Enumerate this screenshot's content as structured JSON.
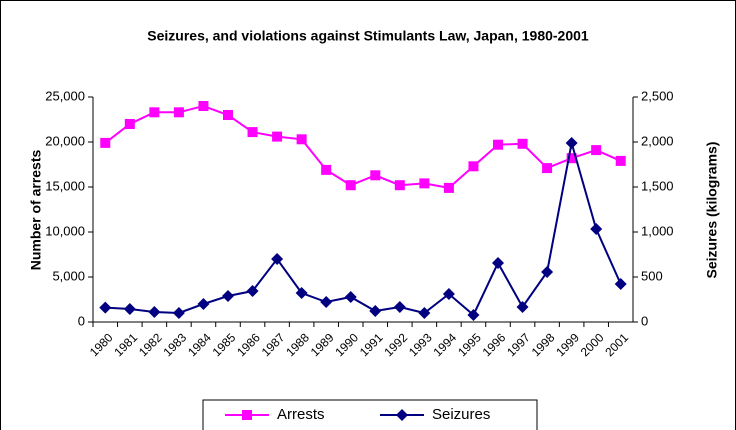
{
  "chart_data": {
    "type": "line",
    "title": "Seizures, and violations against Stimulants Law, Japan, 1980-2001",
    "y_label": "Number of arrests",
    "y2_label": "Seizures (kilograms)",
    "categories": [
      "1980",
      "1981",
      "1982",
      "1983",
      "1984",
      "1985",
      "1986",
      "1987",
      "1988",
      "1989",
      "1990",
      "1991",
      "1992",
      "1993",
      "1994",
      "1995",
      "1996",
      "1997",
      "1998",
      "1999",
      "2000",
      "2001"
    ],
    "series": [
      {
        "name": "Arrests",
        "color": "#ff00ff",
        "marker": "square",
        "values": [
          19900,
          22000,
          23300,
          23300,
          24000,
          23000,
          21100,
          20600,
          20300,
          16900,
          15200,
          16300,
          15200,
          15400,
          14900,
          17300,
          19700,
          19800,
          17100,
          18200,
          19100,
          17900
        ]
      },
      {
        "name": "Seizures",
        "color": "#000080",
        "marker": "diamond",
        "axis": "y2",
        "values": [
          160,
          144,
          111,
          100,
          200,
          289,
          344,
          700,
          322,
          222,
          278,
          122,
          167,
          100,
          311,
          78,
          656,
          167,
          556,
          1989,
          1033,
          422
        ]
      }
    ],
    "ylim": [
      0,
      25000
    ],
    "yticks": [
      0,
      {
        "value": 5000,
        "label": "5,000"
      },
      {
        "value": 10000,
        "label": "10,000"
      },
      {
        "value": 15000,
        "label": "15,000"
      },
      {
        "value": 20000,
        "label": "20,000"
      },
      {
        "value": 25000,
        "label": "25,000"
      }
    ],
    "y2lim": [
      0,
      2500
    ],
    "y2ticks": [
      0,
      500,
      {
        "value": 1000,
        "label": "1,000"
      },
      {
        "value": 1500,
        "label": "1,500"
      },
      {
        "value": 2000,
        "label": "2,000"
      },
      {
        "value": 2500,
        "label": "2,500"
      }
    ],
    "grid": false,
    "legend": "bottom"
  }
}
